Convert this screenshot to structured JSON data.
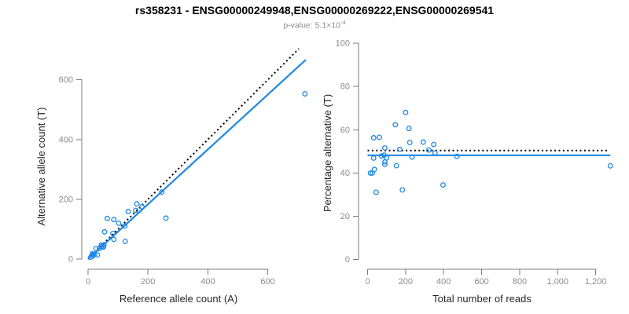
{
  "title": "rs358231 - ENSG00000249948,ENSG00000269222,ENSG00000269541",
  "subtitle": {
    "text": "p-value: 5.1×10",
    "exponent": "-4"
  },
  "colors": {
    "accent_blue": "#1E88E5",
    "reference_black": "#000000",
    "axis_gray": "#7b7b7b",
    "tick_label_gray": "#8b8b8b",
    "subtitle_gray": "#8c8c8c",
    "title_black": "#000000"
  },
  "chart_data": [
    {
      "type": "scatter",
      "panel": "left",
      "title_context": "Alternative vs reference allele counts",
      "xlabel": "Reference allele count (A)",
      "ylabel": "Alternative allele count (T)",
      "xlim": [
        0,
        730
      ],
      "ylim": [
        0,
        706
      ],
      "xticks": [
        0,
        200,
        400,
        600
      ],
      "xtick_labels": [
        "0",
        "200",
        "400",
        "600"
      ],
      "yticks": [
        0,
        200,
        400,
        600
      ],
      "ytick_labels": [
        "0",
        "200",
        "400",
        "600"
      ],
      "grid": false,
      "legend": "none",
      "points": [
        [
          9,
          6
        ],
        [
          14,
          18
        ],
        [
          15,
          10
        ],
        [
          17,
          15
        ],
        [
          21,
          15
        ],
        [
          27,
          35
        ],
        [
          31,
          14
        ],
        [
          38,
          35
        ],
        [
          44,
          47
        ],
        [
          45,
          42
        ],
        [
          50,
          41
        ],
        [
          51,
          40
        ],
        [
          53,
          47
        ],
        [
          55,
          91
        ],
        [
          64,
          136
        ],
        [
          83,
          86
        ],
        [
          86,
          132
        ],
        [
          86,
          66
        ],
        [
          102,
          120
        ],
        [
          123,
          111
        ],
        [
          124,
          59
        ],
        [
          134,
          159
        ],
        [
          159,
          163
        ],
        [
          163,
          185
        ],
        [
          180,
          175
        ],
        [
          246,
          224
        ],
        [
          260,
          137
        ],
        [
          724,
          553
        ]
      ],
      "lines": [
        {
          "name": "identity-line",
          "style": "dotted",
          "color": "#000000",
          "from": [
            0,
            0
          ],
          "to": [
            704,
            704
          ]
        },
        {
          "name": "fit-line",
          "style": "solid",
          "color": "#1E88E5",
          "from": [
            0,
            0
          ],
          "to": [
            727,
            667
          ]
        }
      ]
    },
    {
      "type": "scatter",
      "panel": "right",
      "title_context": "Percentage alternative allele vs coverage",
      "xlabel": "Total number of reads",
      "ylabel": "Percentage alternative (T)",
      "xlim": [
        0,
        1278
      ],
      "ylim": [
        0,
        100
      ],
      "xticks": [
        0,
        200,
        400,
        600,
        800,
        1000,
        1200
      ],
      "xtick_labels": [
        "0",
        "200",
        "400",
        "600",
        "800",
        "1,000",
        "1,200"
      ],
      "yticks": [
        0,
        20,
        40,
        60,
        80,
        100
      ],
      "ytick_labels": [
        "0",
        "20",
        "40",
        "60",
        "80",
        "100"
      ],
      "grid": false,
      "legend": "none",
      "points": [
        [
          15,
          40.0
        ],
        [
          32,
          56.3
        ],
        [
          25,
          40.0
        ],
        [
          32,
          46.9
        ],
        [
          36,
          41.7
        ],
        [
          62,
          56.5
        ],
        [
          45,
          31.1
        ],
        [
          73,
          47.9
        ],
        [
          91,
          51.6
        ],
        [
          87,
          48.3
        ],
        [
          91,
          45.1
        ],
        [
          91,
          44.0
        ],
        [
          100,
          47.0
        ],
        [
          146,
          62.3
        ],
        [
          200,
          68.0
        ],
        [
          169,
          50.9
        ],
        [
          218,
          60.6
        ],
        [
          152,
          43.4
        ],
        [
          222,
          54.1
        ],
        [
          234,
          47.4
        ],
        [
          183,
          32.2
        ],
        [
          293,
          54.3
        ],
        [
          322,
          50.6
        ],
        [
          348,
          53.2
        ],
        [
          355,
          49.3
        ],
        [
          470,
          47.7
        ],
        [
          397,
          34.5
        ],
        [
          1277,
          43.3
        ]
      ],
      "lines": [
        {
          "name": "expected-line",
          "style": "dotted",
          "color": "#000000",
          "from": [
            0,
            50.4
          ],
          "to": [
            1270,
            50.4
          ]
        },
        {
          "name": "fit-line",
          "style": "solid",
          "color": "#1E88E5",
          "from": [
            0,
            48.2
          ],
          "to": [
            1277,
            48.2
          ]
        }
      ]
    }
  ]
}
